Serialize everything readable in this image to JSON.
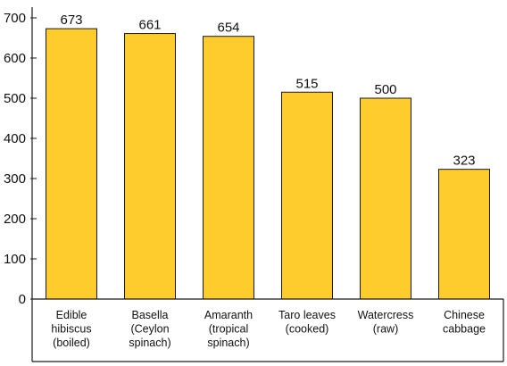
{
  "chart_data": {
    "type": "bar",
    "categories": [
      "Edible hibiscus (boiled)",
      "Basella (Ceylon spinach)",
      "Amaranth (tropical spinach)",
      "Taro leaves (cooked)",
      "Watercress (raw)",
      "Chinese cabbage"
    ],
    "category_lines": [
      [
        "Edible",
        "hibiscus",
        "(boiled)"
      ],
      [
        "Basella",
        "(Ceylon",
        "spinach)"
      ],
      [
        "Amaranth",
        "(tropical",
        "spinach)"
      ],
      [
        "Taro leaves",
        "(cooked)"
      ],
      [
        "Watercress",
        "(raw)"
      ],
      [
        "Chinese",
        "cabbage"
      ]
    ],
    "values": [
      673,
      661,
      654,
      515,
      500,
      323
    ],
    "value_labels": [
      "673",
      "661",
      "654",
      "515",
      "500",
      "323"
    ],
    "ylim": [
      0,
      700
    ],
    "yticks": [
      0,
      100,
      200,
      300,
      400,
      500,
      600,
      700
    ],
    "title": "",
    "xlabel": "",
    "ylabel": "",
    "grid": false,
    "bar_color": "#FFCC2E",
    "bar_edge_color": "#1a1a1a",
    "axis_color": "#1a1a1a"
  }
}
